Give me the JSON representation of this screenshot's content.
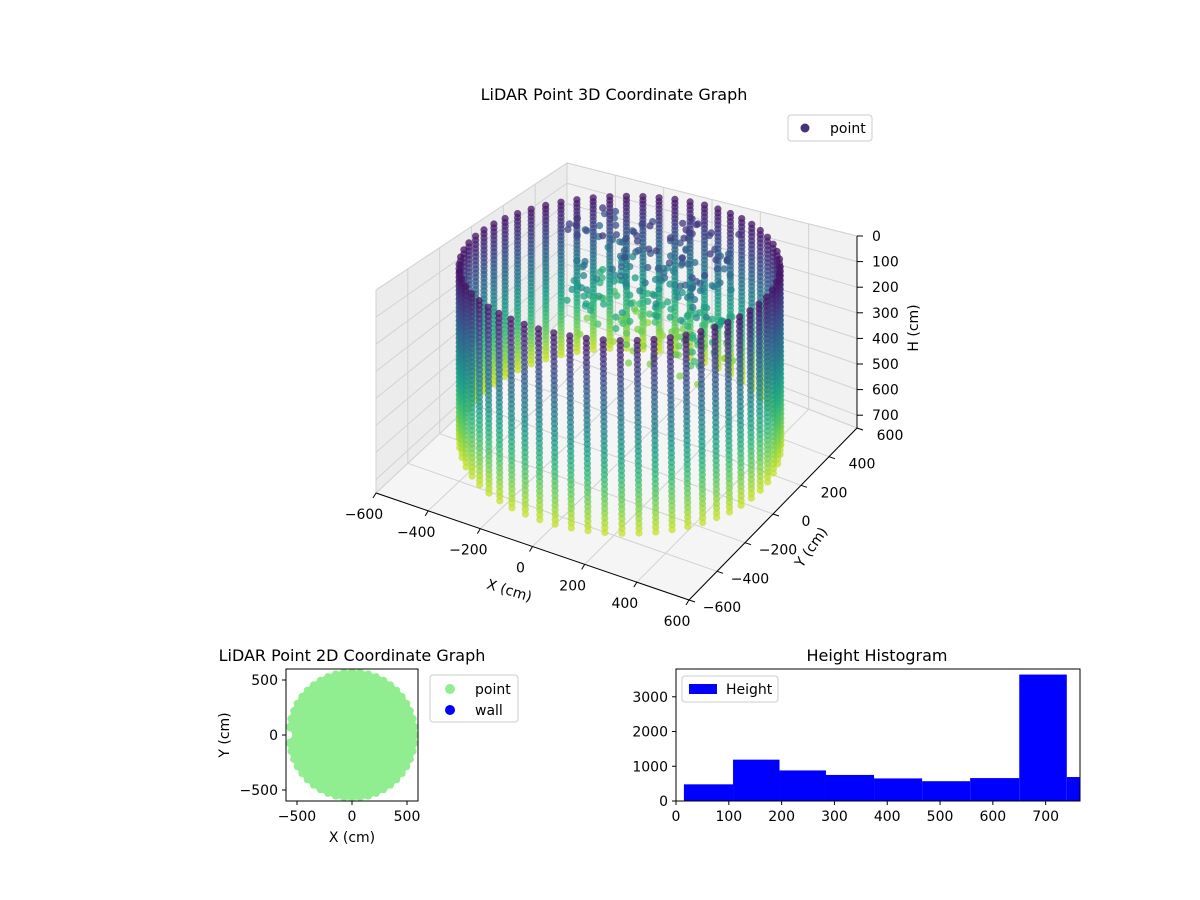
{
  "chart_data": [
    {
      "type": "scatter",
      "subtype": "scatter3d",
      "title": "LiDAR Point 3D Coordinate Graph",
      "xlabel": "X (cm)",
      "ylabel": "Y (cm)",
      "zlabel": "H (cm)",
      "xlim": [
        -600,
        600
      ],
      "ylim": [
        -600,
        600
      ],
      "zlim": [
        0,
        750
      ],
      "z_inverted": true,
      "x_ticks": [
        -600,
        -400,
        -200,
        0,
        200,
        400,
        600
      ],
      "y_ticks": [
        -600,
        -400,
        -200,
        0,
        200,
        400,
        600
      ],
      "z_ticks": [
        0,
        100,
        200,
        300,
        400,
        500,
        600,
        700
      ],
      "colormap": "viridis",
      "grid": true,
      "legend": {
        "position": "top-right",
        "entries": [
          {
            "name": "point",
            "color": "#46327e"
          }
        ]
      },
      "wall": {
        "shape": "cylinder",
        "radius": 550,
        "center": [
          0,
          0
        ],
        "height_range": [
          0,
          680
        ],
        "scan_columns": 60
      },
      "clutter": {
        "description_height_range": [
          80,
          640
        ],
        "cluster_center": [
          -150,
          450
        ],
        "cluster_spread": 300
      }
    },
    {
      "type": "scatter",
      "title": "LiDAR Point 2D Coordinate Graph",
      "xlabel": "X (cm)",
      "ylabel": "Y (cm)",
      "xlim": [
        -600,
        600
      ],
      "ylim": [
        -600,
        600
      ],
      "x_ticks": [
        -500,
        0,
        500
      ],
      "y_ticks": [
        -500,
        0,
        500
      ],
      "grid": false,
      "legend": {
        "position": "outside-right",
        "entries": [
          {
            "name": "point",
            "color": "#90ee90"
          },
          {
            "name": "wall",
            "color": "#0000ff"
          }
        ]
      },
      "disk_radius": 590
    },
    {
      "type": "bar",
      "subtype": "histogram",
      "title": "Height Histogram",
      "xlabel": "",
      "ylabel": "",
      "xlim": [
        0,
        765
      ],
      "ylim": [
        0,
        3800
      ],
      "x_ticks": [
        0,
        100,
        200,
        300,
        400,
        500,
        600,
        700
      ],
      "y_ticks": [
        0,
        1000,
        2000,
        3000
      ],
      "color": "#0000ff",
      "grid": false,
      "legend": {
        "position": "top-left",
        "entries": [
          {
            "name": "Height",
            "color": "#0000ff"
          }
        ]
      },
      "bins": [
        {
          "start": 15,
          "end": 108,
          "count": 480
        },
        {
          "start": 108,
          "end": 196,
          "count": 1190
        },
        {
          "start": 196,
          "end": 284,
          "count": 880
        },
        {
          "start": 284,
          "end": 375,
          "count": 750
        },
        {
          "start": 375,
          "end": 466,
          "count": 650
        },
        {
          "start": 466,
          "end": 557,
          "count": 570
        },
        {
          "start": 557,
          "end": 650,
          "count": 660
        },
        {
          "start": 650,
          "end": 740,
          "count": 3640
        },
        {
          "start": 740,
          "end": 765,
          "count": 690
        }
      ]
    }
  ]
}
